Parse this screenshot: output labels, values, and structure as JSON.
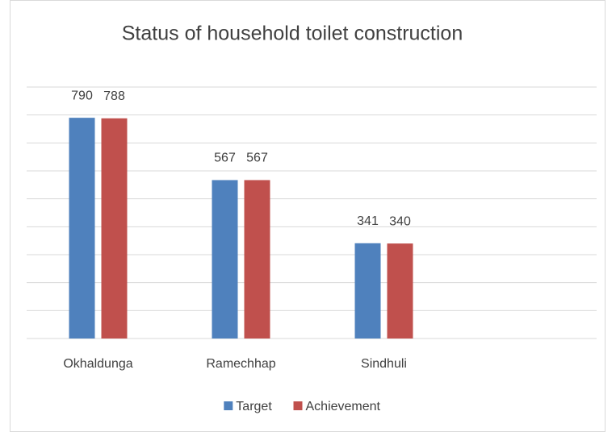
{
  "chart_data": {
    "type": "bar",
    "title": "Status of household toilet construction",
    "categories": [
      "Okhaldunga",
      "Ramechhap",
      "Sindhuli",
      null
    ],
    "series": [
      {
        "name": "Target",
        "color": "#4f81bd",
        "values": [
          790,
          567,
          341,
          null
        ]
      },
      {
        "name": "Achievement",
        "color": "#c0504d",
        "values": [
          788,
          567,
          340,
          null
        ]
      }
    ],
    "ylim": [
      0,
      900
    ],
    "yticks": [
      0,
      100,
      200,
      300,
      400,
      500,
      600,
      700,
      800,
      900
    ],
    "grid": true,
    "legend": "bottom"
  }
}
